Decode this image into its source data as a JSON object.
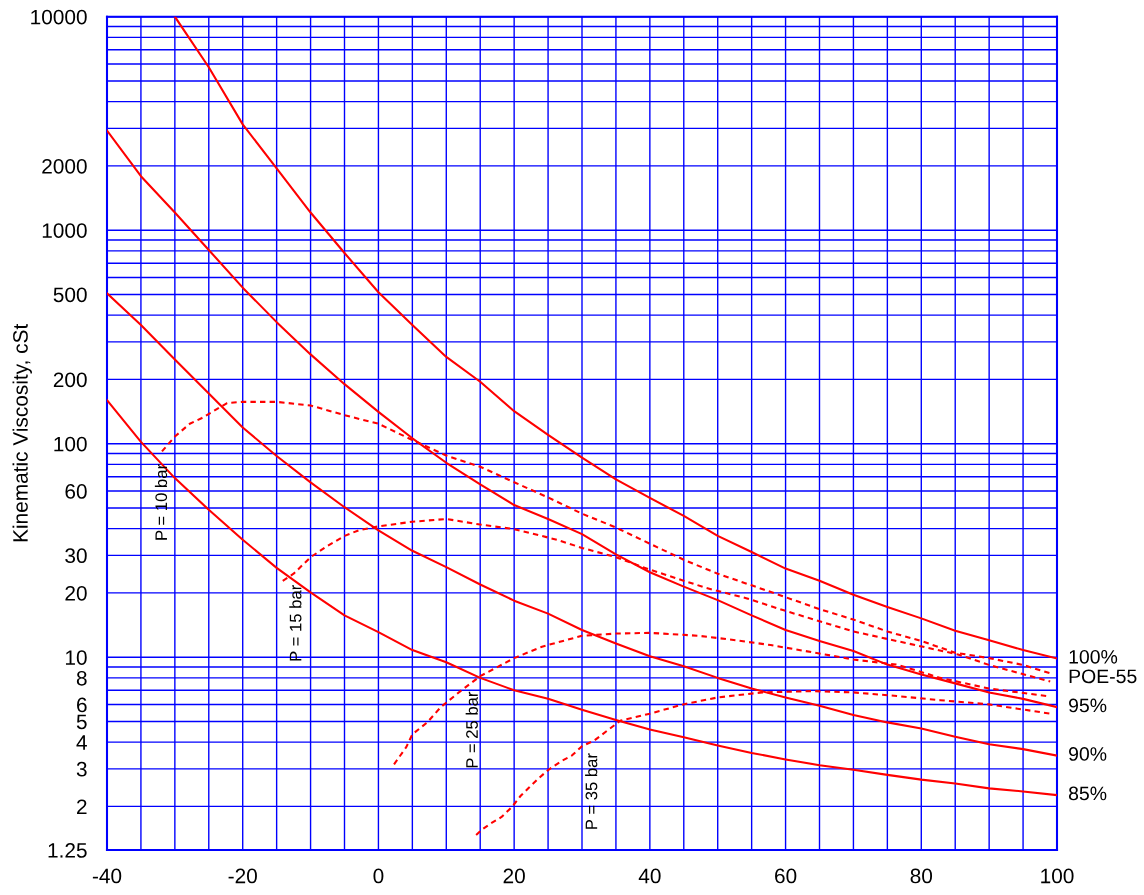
{
  "chart_data": {
    "type": "line",
    "ylabel": "Kinematic Viscosity, cSt",
    "log": "y",
    "grid": true,
    "xlim": [
      -40,
      100
    ],
    "ylim": [
      1.25,
      10000
    ],
    "xticks": [
      -40,
      {
        "value": -35,
        "label": null
      },
      {
        "value": -30,
        "label": null
      },
      {
        "value": -25,
        "label": null
      },
      -20,
      {
        "value": -15,
        "label": null
      },
      {
        "value": -10,
        "label": null
      },
      {
        "value": -5,
        "label": null
      },
      0,
      {
        "value": 5,
        "label": null
      },
      {
        "value": 10,
        "label": null
      },
      {
        "value": 15,
        "label": null
      },
      20,
      {
        "value": 25,
        "label": null
      },
      {
        "value": 30,
        "label": null
      },
      {
        "value": 35,
        "label": null
      },
      40,
      {
        "value": 45,
        "label": null
      },
      {
        "value": 50,
        "label": null
      },
      {
        "value": 55,
        "label": null
      },
      60,
      {
        "value": 65,
        "label": null
      },
      {
        "value": 70,
        "label": null
      },
      {
        "value": 75,
        "label": null
      },
      80,
      {
        "value": 85,
        "label": null
      },
      {
        "value": 90,
        "label": null
      },
      {
        "value": 95,
        "label": null
      },
      100
    ],
    "yticks": [
      1.25,
      2,
      3,
      4,
      5,
      6,
      {
        "value": 7,
        "label": null
      },
      8,
      {
        "value": 9,
        "label": null
      },
      10,
      20,
      30,
      {
        "value": 40,
        "label": null
      },
      {
        "value": 50,
        "label": null
      },
      60,
      {
        "value": 70,
        "label": null
      },
      {
        "value": 80,
        "label": null
      },
      {
        "value": 90,
        "label": null
      },
      100,
      200,
      {
        "value": 300,
        "label": null
      },
      {
        "value": 400,
        "label": null
      },
      500,
      {
        "value": 600,
        "label": null
      },
      {
        "value": 700,
        "label": null
      },
      {
        "value": 800,
        "label": null
      },
      {
        "value": 900,
        "label": null
      },
      1000,
      2000,
      {
        "value": 3000,
        "label": null
      },
      {
        "value": 4000,
        "label": null
      },
      {
        "value": 5000,
        "label": null
      },
      {
        "value": 6000,
        "label": null
      },
      {
        "value": 7000,
        "label": null
      },
      {
        "value": 8000,
        "label": null
      },
      {
        "value": 9000,
        "label": null
      },
      10000
    ],
    "series": [
      {
        "name": "100%",
        "color": "#ff0000",
        "line_style": "solid",
        "x": [
          -30,
          -25,
          -20,
          -15,
          -10,
          -5,
          0,
          5,
          10,
          15,
          20,
          25,
          30,
          35,
          40,
          45,
          50,
          55,
          60,
          65,
          70,
          75,
          80,
          85,
          90,
          95,
          100
        ],
        "values": [
          10000,
          5800,
          3130,
          1950,
          1210,
          782,
          512,
          360,
          255,
          195,
          142,
          110,
          86,
          68,
          55.7,
          45.9,
          37,
          31.1,
          26,
          22.8,
          19.6,
          17.2,
          15.2,
          13.3,
          12,
          10.8,
          9.86
        ]
      },
      {
        "name": "95%",
        "color": "#ff0000",
        "line_style": "solid",
        "x": [
          -40,
          -35,
          -30,
          -25,
          -20,
          -15,
          -10,
          -5,
          0,
          5,
          10,
          15,
          20,
          25,
          30,
          35,
          40,
          45,
          50,
          55,
          60,
          65,
          70,
          75,
          80,
          85,
          90,
          95,
          100
        ],
        "values": [
          2930,
          1790,
          1210,
          808,
          538,
          371,
          262,
          190,
          141,
          106,
          81.4,
          64.5,
          51.6,
          44.4,
          37.7,
          30.3,
          25,
          21.4,
          18.5,
          15.7,
          13.4,
          11.9,
          10.7,
          9.23,
          8.29,
          7.54,
          6.84,
          6.38,
          5.84
        ]
      },
      {
        "name": "90%",
        "color": "#ff0000",
        "line_style": "solid",
        "x": [
          -40,
          -35,
          -30,
          -25,
          -20,
          -15,
          -10,
          -5,
          0,
          5,
          10,
          15,
          20,
          25,
          30,
          35,
          40,
          45,
          50,
          55,
          60,
          65,
          70,
          75,
          80,
          85,
          90,
          95,
          100
        ],
        "values": [
          506,
          360,
          248,
          172,
          119,
          87.6,
          65.9,
          50.4,
          39.3,
          31.5,
          26.4,
          21.9,
          18.4,
          16,
          13.4,
          11.6,
          10.1,
          9.06,
          8,
          7.13,
          6.48,
          5.93,
          5.36,
          4.95,
          4.63,
          4.24,
          3.91,
          3.71,
          3.46
        ]
      },
      {
        "name": "85%",
        "color": "#ff0000",
        "line_style": "solid",
        "x": [
          -40,
          -35,
          -30,
          -25,
          -20,
          -15,
          -10,
          -5,
          0,
          5,
          10,
          15,
          20,
          25,
          30,
          35,
          40,
          45,
          50,
          55,
          60,
          65,
          70,
          75,
          80,
          85,
          90,
          95,
          100
        ],
        "values": [
          160,
          102,
          69,
          49,
          35.5,
          26.2,
          20.1,
          15.7,
          13.1,
          10.8,
          9.47,
          8,
          7,
          6.38,
          5.67,
          5.08,
          4.58,
          4.22,
          3.86,
          3.56,
          3.32,
          3.12,
          2.97,
          2.81,
          2.67,
          2.56,
          2.43,
          2.35,
          2.26
        ]
      },
      {
        "color": "#ff0000",
        "line_style": "dashed",
        "x": [
          -31.9,
          -30,
          -27.8,
          -26,
          -22.3,
          -20,
          -15,
          -10,
          -5,
          0,
          5,
          10,
          15,
          20,
          25,
          30,
          35,
          40,
          45,
          50,
          55,
          60,
          65,
          70,
          75,
          80,
          85,
          90,
          95,
          99
        ],
        "values": [
          92,
          108,
          124,
          132,
          155,
          157,
          157,
          151,
          136,
          124,
          104,
          88,
          78,
          66,
          56,
          47,
          40.5,
          34,
          28.6,
          24.6,
          21.7,
          19.1,
          16.8,
          15,
          13.2,
          11.9,
          10.5,
          9.9,
          9.2,
          8.4
        ]
      },
      {
        "color": "#ff0000",
        "line_style": "dashed",
        "x": [
          -14.1,
          -12.5,
          -10,
          -7.7,
          -5,
          -2.9,
          0,
          5,
          10,
          15,
          20,
          26.3,
          30,
          35,
          40,
          48.3,
          54.2,
          60.2,
          70,
          76.4,
          85.4,
          90,
          99
        ],
        "values": [
          22.8,
          24.6,
          29.4,
          32.9,
          37,
          39.3,
          41,
          43.1,
          44.4,
          41.8,
          39.8,
          35.5,
          32.5,
          29.4,
          25.7,
          21.1,
          18.9,
          16.4,
          13.2,
          11.9,
          10.3,
          9.2,
          7.7
        ]
      },
      {
        "color": "#ff0000",
        "line_style": "dashed",
        "x": [
          2.3,
          4.1,
          5,
          7.2,
          9.2,
          12,
          15,
          20,
          24.1,
          30,
          35,
          40,
          47.2,
          51.8,
          57.8,
          65.8,
          70,
          76.4,
          82.8,
          90,
          99
        ],
        "values": [
          3.15,
          3.79,
          4.35,
          4.95,
          5.84,
          6.9,
          8.15,
          9.9,
          11.2,
          12.6,
          12.9,
          13,
          12.6,
          12.1,
          11.4,
          10.3,
          9.75,
          9.23,
          8,
          7.13,
          6.54
        ]
      },
      {
        "color": "#ff0000",
        "line_style": "dashed",
        "x": [
          14.4,
          15.4,
          16.5,
          18.1,
          19.7,
          21,
          22.2,
          23.5,
          25,
          27.1,
          28.5,
          30,
          31.8,
          34,
          35.7,
          40,
          44.9,
          50,
          56.6,
          63.9,
          70,
          76.4,
          82.8,
          90,
          99
        ],
        "values": [
          1.47,
          1.57,
          1.66,
          1.78,
          1.99,
          2.25,
          2.45,
          2.69,
          2.96,
          3.28,
          3.46,
          3.83,
          4.07,
          4.6,
          5.05,
          5.44,
          6.01,
          6.48,
          6.84,
          6.94,
          6.84,
          6.58,
          6.29,
          6.01,
          5.44
        ]
      }
    ],
    "annotations": [
      "POE-55",
      {
        "text": "P = 10 bar",
        "x": -31.8,
        "y": 92
      },
      {
        "text": "P = 15 bar",
        "x": -12,
        "y": 25
      },
      {
        "text": "P = 25 bar",
        "x": 14,
        "y": 7.9
      },
      {
        "text": "P = 35 bar",
        "x": 31.6,
        "y": 4.07
      }
    ]
  }
}
